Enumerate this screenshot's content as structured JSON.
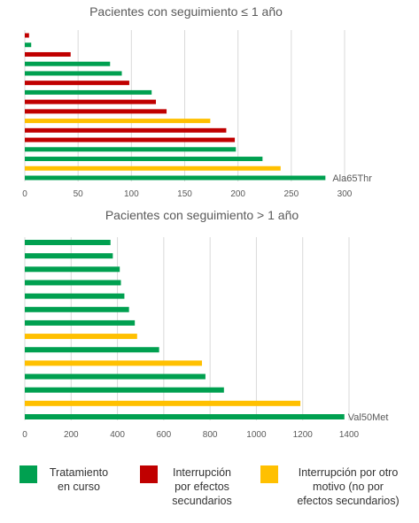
{
  "colors": {
    "tratamiento": "#00A050",
    "interrupcion_efectos": "#C00000",
    "interrupcion_otro": "#FFC000"
  },
  "legend": [
    {
      "key": "tratamiento",
      "label": "Tratamiento\nen curso"
    },
    {
      "key": "interrupcion_efectos",
      "label": "Interrupción\npor efectos\nsecundarios"
    },
    {
      "key": "interrupcion_otro",
      "label": "Interrupción por otro\nmotivo (no por\nefectos secundarios)"
    }
  ],
  "chart_data": [
    {
      "type": "bar",
      "orientation": "horizontal",
      "title": "Pacientes con seguimiento ≤ 1 año",
      "xlim": [
        0,
        300
      ],
      "xticks": [
        0,
        50,
        100,
        150,
        200,
        250,
        300
      ],
      "grid": true,
      "annotation": "Ala65Thr",
      "bars": [
        {
          "value": 4,
          "status": "interrupcion_efectos"
        },
        {
          "value": 6,
          "status": "tratamiento"
        },
        {
          "value": 43,
          "status": "interrupcion_efectos"
        },
        {
          "value": 80,
          "status": "tratamiento"
        },
        {
          "value": 91,
          "status": "tratamiento"
        },
        {
          "value": 98,
          "status": "interrupcion_efectos"
        },
        {
          "value": 119,
          "status": "tratamiento"
        },
        {
          "value": 123,
          "status": "interrupcion_efectos"
        },
        {
          "value": 133,
          "status": "interrupcion_efectos"
        },
        {
          "value": 174,
          "status": "interrupcion_otro"
        },
        {
          "value": 189,
          "status": "interrupcion_efectos"
        },
        {
          "value": 197,
          "status": "interrupcion_efectos"
        },
        {
          "value": 198,
          "status": "tratamiento"
        },
        {
          "value": 223,
          "status": "tratamiento"
        },
        {
          "value": 240,
          "status": "interrupcion_otro"
        },
        {
          "value": 282,
          "status": "tratamiento"
        }
      ]
    },
    {
      "type": "bar",
      "orientation": "horizontal",
      "title": "Pacientes con seguimiento > 1 año",
      "xlim": [
        0,
        1400
      ],
      "xticks": [
        0,
        200,
        400,
        600,
        800,
        1000,
        1200,
        1400
      ],
      "grid": true,
      "annotation": "Val50Met",
      "bars": [
        {
          "value": 370,
          "status": "tratamiento"
        },
        {
          "value": 380,
          "status": "tratamiento"
        },
        {
          "value": 410,
          "status": "tratamiento"
        },
        {
          "value": 415,
          "status": "tratamiento"
        },
        {
          "value": 430,
          "status": "tratamiento"
        },
        {
          "value": 450,
          "status": "tratamiento"
        },
        {
          "value": 475,
          "status": "tratamiento"
        },
        {
          "value": 485,
          "status": "interrupcion_otro"
        },
        {
          "value": 580,
          "status": "tratamiento"
        },
        {
          "value": 765,
          "status": "interrupcion_otro"
        },
        {
          "value": 780,
          "status": "tratamiento"
        },
        {
          "value": 860,
          "status": "tratamiento"
        },
        {
          "value": 1190,
          "status": "interrupcion_otro"
        },
        {
          "value": 1380,
          "status": "tratamiento"
        }
      ]
    }
  ]
}
